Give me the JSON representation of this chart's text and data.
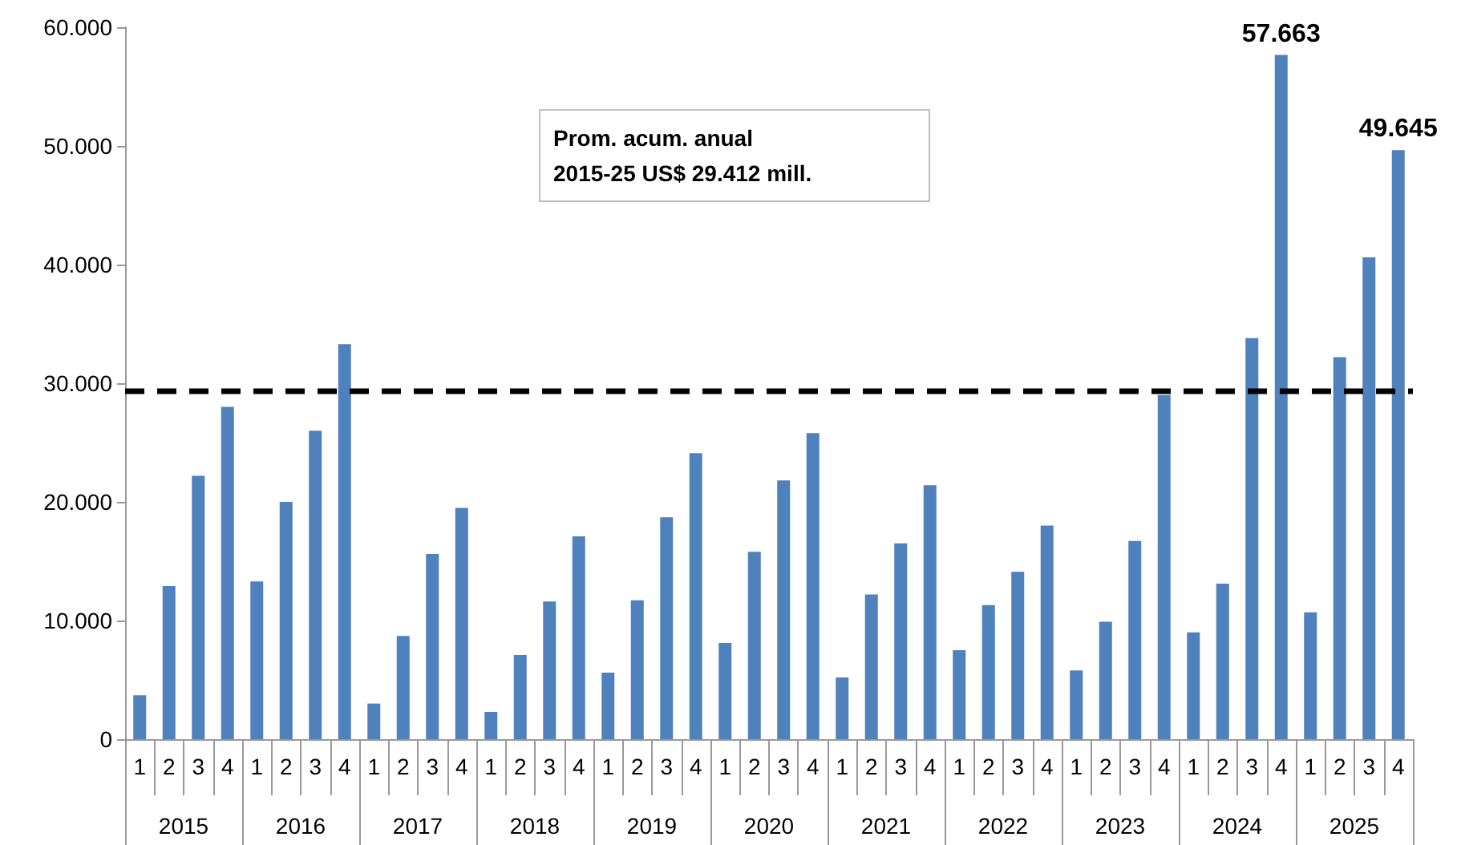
{
  "chart_data": {
    "type": "bar",
    "categories": [
      "1",
      "2",
      "3",
      "4",
      "1",
      "2",
      "3",
      "4",
      "1",
      "2",
      "3",
      "4",
      "1",
      "2",
      "3",
      "4",
      "1",
      "2",
      "3",
      "4",
      "1",
      "2",
      "3",
      "4",
      "1",
      "2",
      "3",
      "4",
      "1",
      "2",
      "3",
      "4",
      "1",
      "2",
      "3",
      "4",
      "1",
      "2",
      "3",
      "4",
      "1",
      "2",
      "3",
      "4"
    ],
    "values": [
      3700,
      12900,
      22200,
      28000,
      13300,
      20000,
      26000,
      33300,
      3000,
      8700,
      15600,
      19500,
      2300,
      7100,
      11600,
      17100,
      5600,
      11700,
      18700,
      24100,
      8100,
      15800,
      21800,
      25800,
      5200,
      12200,
      16500,
      21400,
      7500,
      11300,
      14100,
      18000,
      5800,
      9900,
      16700,
      29000,
      9000,
      13100,
      33800,
      57663,
      10700,
      32200,
      40600,
      49645
    ],
    "value_labels": [
      null,
      null,
      null,
      null,
      null,
      null,
      null,
      null,
      null,
      null,
      null,
      null,
      null,
      null,
      null,
      null,
      null,
      null,
      null,
      null,
      null,
      null,
      null,
      null,
      null,
      null,
      null,
      null,
      null,
      null,
      null,
      null,
      null,
      null,
      null,
      null,
      null,
      null,
      null,
      "57.663",
      null,
      null,
      null,
      "49.645"
    ],
    "color": "#4f81bd",
    "ylim": [
      0,
      60000
    ],
    "yticks": [
      {
        "value": 0,
        "label": "0"
      },
      {
        "value": 10000,
        "label": "10.000"
      },
      {
        "value": 20000,
        "label": "20.000"
      },
      {
        "value": 30000,
        "label": "30.000"
      },
      {
        "value": 40000,
        "label": "40.000"
      },
      {
        "value": 50000,
        "label": "50.000"
      },
      {
        "value": 60000,
        "label": "60.000"
      }
    ],
    "annotations": [
      "2015",
      "2016",
      "2017",
      "2018",
      "2019",
      "2020",
      "2021",
      "2022",
      "2023",
      "2024",
      "2025"
    ],
    "ref_lines": [
      {
        "axis": "y",
        "value": 29412,
        "label": "Prom. acum. anual\n2015-25 US$ 29.412 mill.",
        "color": "#000000",
        "line_style": "dashed"
      }
    ],
    "grid": false
  }
}
